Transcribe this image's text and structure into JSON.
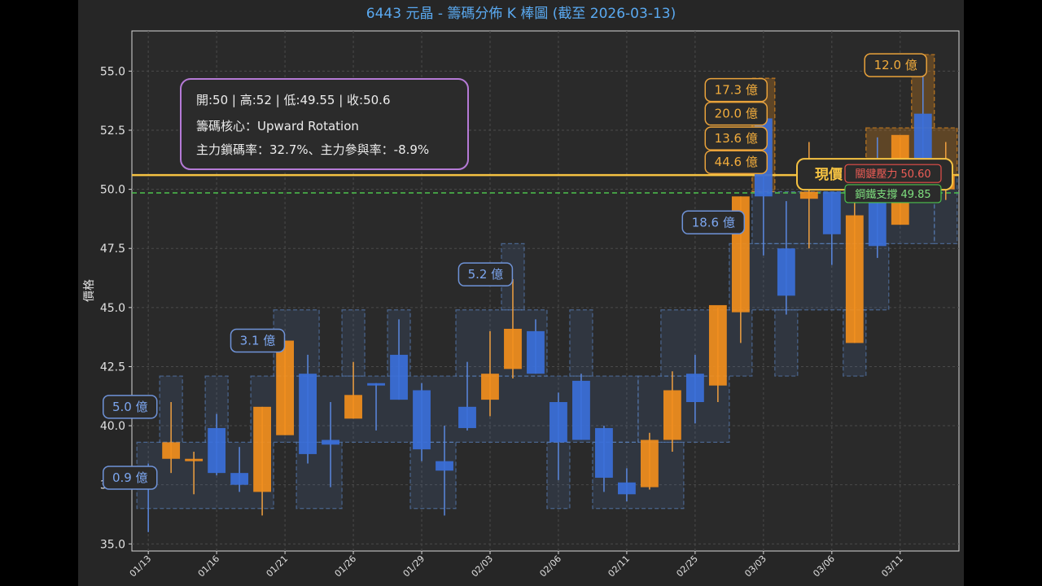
{
  "chart_data": {
    "type": "candlestick",
    "title": "6443 元晶 - 籌碼分佈 K 棒圖 (截至 2026-03-13)",
    "xlabel": "",
    "ylabel": "價格",
    "ylim": [
      34.7,
      56.7
    ],
    "y_ticks": [
      "35.0",
      "37.5",
      "40.0",
      "42.5",
      "45.0",
      "47.5",
      "50.0",
      "52.5",
      "55.0"
    ],
    "y_tick_values": [
      35,
      37.5,
      40,
      42.5,
      45,
      47.5,
      50,
      52.5,
      55
    ],
    "x_tick_labels": [
      "01/13",
      "01/16",
      "01/21",
      "01/26",
      "01/29",
      "02/03",
      "02/06",
      "02/11",
      "02/25",
      "03/03",
      "03/06",
      "03/11"
    ],
    "x_tick_index": [
      0,
      3,
      6,
      9,
      12,
      15,
      18,
      21,
      24,
      27,
      30,
      33
    ],
    "grid": true,
    "colors": {
      "up": "#f28e1c",
      "down": "#3b6fd9",
      "current": "#f5c242",
      "support": "#4cc24c",
      "resist": "#e8504a"
    },
    "candles": [
      {
        "o": 38.1,
        "h": 38.4,
        "l": 35.5,
        "c": 37.9
      },
      {
        "o": 38.6,
        "h": 41.0,
        "l": 38.0,
        "c": 39.3
      },
      {
        "o": 38.5,
        "h": 38.9,
        "l": 37.1,
        "c": 38.6
      },
      {
        "o": 39.9,
        "h": 40.5,
        "l": 37.9,
        "c": 38.0
      },
      {
        "o": 38.0,
        "h": 39.1,
        "l": 37.2,
        "c": 37.5
      },
      {
        "o": 37.2,
        "h": 40.8,
        "l": 36.2,
        "c": 40.8
      },
      {
        "o": 39.6,
        "h": 43.6,
        "l": 39.6,
        "c": 43.6
      },
      {
        "o": 42.2,
        "h": 43.0,
        "l": 38.4,
        "c": 38.8
      },
      {
        "o": 39.4,
        "h": 41.0,
        "l": 37.4,
        "c": 39.2
      },
      {
        "o": 40.3,
        "h": 42.7,
        "l": 40.3,
        "c": 41.3
      },
      {
        "o": 41.8,
        "h": 41.8,
        "l": 39.8,
        "c": 41.7
      },
      {
        "o": 43.0,
        "h": 44.5,
        "l": 41.1,
        "c": 41.1
      },
      {
        "o": 41.5,
        "h": 41.8,
        "l": 38.5,
        "c": 39.0
      },
      {
        "o": 38.5,
        "h": 40.0,
        "l": 36.2,
        "c": 38.1
      },
      {
        "o": 40.8,
        "h": 42.7,
        "l": 39.8,
        "c": 39.9
      },
      {
        "o": 41.1,
        "h": 44.0,
        "l": 40.4,
        "c": 42.2
      },
      {
        "o": 42.4,
        "h": 46.2,
        "l": 42.0,
        "c": 44.1
      },
      {
        "o": 44.0,
        "h": 44.5,
        "l": 42.2,
        "c": 42.2
      },
      {
        "o": 41.0,
        "h": 41.4,
        "l": 37.7,
        "c": 39.3
      },
      {
        "o": 41.9,
        "h": 42.2,
        "l": 39.4,
        "c": 39.4
      },
      {
        "o": 39.9,
        "h": 40.0,
        "l": 37.2,
        "c": 37.8
      },
      {
        "o": 37.6,
        "h": 38.2,
        "l": 36.8,
        "c": 37.1
      },
      {
        "o": 37.4,
        "h": 39.7,
        "l": 37.3,
        "c": 39.4
      },
      {
        "o": 39.4,
        "h": 42.3,
        "l": 38.9,
        "c": 41.5
      },
      {
        "o": 42.2,
        "h": 43.0,
        "l": 40.1,
        "c": 41.0
      },
      {
        "o": 41.7,
        "h": 45.0,
        "l": 41.0,
        "c": 45.1
      },
      {
        "o": 44.8,
        "h": 49.7,
        "l": 43.5,
        "c": 49.7
      },
      {
        "o": 53.0,
        "h": 54.2,
        "l": 47.2,
        "c": 49.7
      },
      {
        "o": 47.5,
        "h": 49.5,
        "l": 44.7,
        "c": 45.5
      },
      {
        "o": 49.6,
        "h": 52.0,
        "l": 47.5,
        "c": 49.9
      },
      {
        "o": 49.9,
        "h": 49.9,
        "l": 46.8,
        "c": 48.1
      },
      {
        "o": 43.5,
        "h": 49.8,
        "l": 43.5,
        "c": 48.9
      },
      {
        "o": 49.8,
        "h": 52.2,
        "l": 47.1,
        "c": 47.6
      },
      {
        "o": 48.5,
        "h": 52.2,
        "l": 48.5,
        "c": 52.3
      },
      {
        "o": 53.2,
        "h": 55.5,
        "l": 50.5,
        "c": 50.6
      },
      {
        "o": 50.0,
        "h": 52.0,
        "l": 49.55,
        "c": 50.6
      }
    ],
    "zones": [
      {
        "x0": -0.5,
        "x1": 5.5,
        "y0": 36.5,
        "y1": 39.3,
        "kind": "blue"
      },
      {
        "x0": 0.5,
        "x1": 1.5,
        "y0": 39.3,
        "y1": 42.1,
        "kind": "blue"
      },
      {
        "x0": 2.5,
        "x1": 3.5,
        "y0": 39.3,
        "y1": 42.1,
        "kind": "blue"
      },
      {
        "x0": 4.5,
        "x1": 21.5,
        "y0": 39.3,
        "y1": 42.1,
        "kind": "blue"
      },
      {
        "x0": 5.5,
        "x1": 7.5,
        "y0": 42.1,
        "y1": 44.9,
        "kind": "blue"
      },
      {
        "x0": 6.5,
        "x1": 8.5,
        "y0": 36.5,
        "y1": 39.3,
        "kind": "blue"
      },
      {
        "x0": 8.5,
        "x1": 9.5,
        "y0": 42.1,
        "y1": 44.9,
        "kind": "blue"
      },
      {
        "x0": 10.5,
        "x1": 11.5,
        "y0": 42.1,
        "y1": 44.9,
        "kind": "blue"
      },
      {
        "x0": 11.5,
        "x1": 13.5,
        "y0": 36.5,
        "y1": 39.3,
        "kind": "blue"
      },
      {
        "x0": 13.5,
        "x1": 17.5,
        "y0": 42.1,
        "y1": 44.9,
        "kind": "blue"
      },
      {
        "x0": 15.5,
        "x1": 16.5,
        "y0": 44.9,
        "y1": 47.7,
        "kind": "blue"
      },
      {
        "x0": 17.5,
        "x1": 18.5,
        "y0": 36.5,
        "y1": 39.3,
        "kind": "blue"
      },
      {
        "x0": 18.5,
        "x1": 19.5,
        "y0": 42.1,
        "y1": 44.9,
        "kind": "blue"
      },
      {
        "x0": 19.5,
        "x1": 23.5,
        "y0": 36.5,
        "y1": 39.3,
        "kind": "blue"
      },
      {
        "x0": 21.5,
        "x1": 25.5,
        "y0": 39.3,
        "y1": 42.1,
        "kind": "blue"
      },
      {
        "x0": 22.5,
        "x1": 26.5,
        "y0": 42.1,
        "y1": 44.9,
        "kind": "blue"
      },
      {
        "x0": 25.5,
        "x1": 32.5,
        "y0": 44.9,
        "y1": 47.7,
        "kind": "blue"
      },
      {
        "x0": 26.5,
        "x1": 34.5,
        "y0": 47.7,
        "y1": 49.9,
        "kind": "blue"
      },
      {
        "x0": 27.5,
        "x1": 28.5,
        "y0": 42.1,
        "y1": 44.9,
        "kind": "blue"
      },
      {
        "x0": 30.5,
        "x1": 31.5,
        "y0": 42.1,
        "y1": 44.9,
        "kind": "blue"
      },
      {
        "x0": 34.5,
        "x1": 35.5,
        "y0": 47.7,
        "y1": 50.6,
        "kind": "blue"
      },
      {
        "x0": 26.5,
        "x1": 27.5,
        "y0": 49.9,
        "y1": 54.7,
        "kind": "orange"
      },
      {
        "x0": 31.5,
        "x1": 35.5,
        "y0": 50.6,
        "y1": 52.6,
        "kind": "orange"
      },
      {
        "x0": 33.5,
        "x1": 34.5,
        "y0": 52.6,
        "y1": 55.7,
        "kind": "orange"
      }
    ],
    "annotations": [
      {
        "text": "0.9 億",
        "x": -0.8,
        "y": 37.8,
        "color": "blue"
      },
      {
        "text": "5.0 億",
        "x": -0.8,
        "y": 40.8,
        "color": "blue"
      },
      {
        "text": "3.1 億",
        "x": 4.8,
        "y": 43.6,
        "color": "blue"
      },
      {
        "text": "5.2 億",
        "x": 14.8,
        "y": 46.4,
        "color": "blue"
      },
      {
        "text": "18.6 億",
        "x": 24.8,
        "y": 48.6,
        "color": "blue"
      },
      {
        "text": "44.6 億",
        "x": 25.8,
        "y": 51.15,
        "color": "orange"
      },
      {
        "text": "13.6 億",
        "x": 25.8,
        "y": 52.15,
        "color": "orange"
      },
      {
        "text": "20.0 億",
        "x": 25.8,
        "y": 53.2,
        "color": "orange"
      },
      {
        "text": "17.3 億",
        "x": 25.8,
        "y": 54.2,
        "color": "orange"
      },
      {
        "text": "12.0 億",
        "x": 32.8,
        "y": 55.25,
        "color": "orange"
      }
    ],
    "current_price": {
      "value": 50.6,
      "label": "現價"
    },
    "resistance": {
      "value": 50.6,
      "label": "關鍵壓力 50.60"
    },
    "support": {
      "value": 49.85,
      "label": "鋼鐵支撐 49.85"
    }
  },
  "info_box": {
    "line1": "開:50 | 高:52 | 低:49.55 | 收:50.6",
    "line2": "籌碼核心：Upward Rotation",
    "line3": "主力鎖碼率：32.7%、主力參與率：-8.9%"
  }
}
